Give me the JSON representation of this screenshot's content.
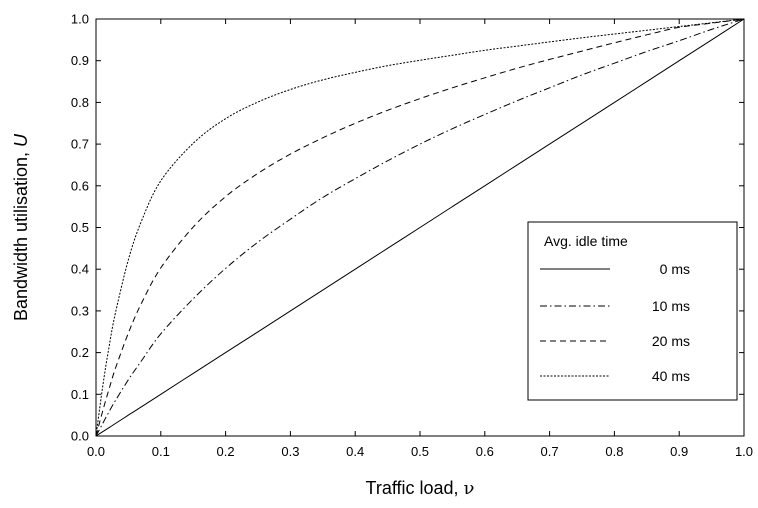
{
  "chart_data": {
    "type": "line",
    "xlabel": "Traffic load, ",
    "xlabel_symbol": "ν",
    "ylabel": "Bandwidth utilisation, ",
    "ylabel_symbol": "U",
    "xlim": [
      0.0,
      1.0
    ],
    "ylim": [
      0.0,
      1.0
    ],
    "xticks": [
      "0.0",
      "0.1",
      "0.2",
      "0.3",
      "0.4",
      "0.5",
      "0.6",
      "0.7",
      "0.8",
      "0.9",
      "1.0"
    ],
    "yticks": [
      "0.0",
      "0.1",
      "0.2",
      "0.3",
      "0.4",
      "0.5",
      "0.6",
      "0.7",
      "0.8",
      "0.9",
      "1.0"
    ],
    "grid": false,
    "legend": {
      "title": "Avg. idle time",
      "placement": "lower-right",
      "entries": [
        "0 ms",
        "10 ms",
        "20 ms",
        "40 ms"
      ]
    },
    "x": [
      0.0,
      0.01,
      0.02,
      0.03,
      0.05,
      0.07,
      0.1,
      0.15,
      0.2,
      0.25,
      0.3,
      0.35,
      0.4,
      0.45,
      0.5,
      0.55,
      0.6,
      0.65,
      0.7,
      0.75,
      0.8,
      0.85,
      0.9,
      0.95,
      1.0
    ],
    "series": [
      {
        "name": "0 ms",
        "dash": "solid",
        "values": [
          0.0,
          0.01,
          0.02,
          0.03,
          0.05,
          0.07,
          0.1,
          0.15,
          0.2,
          0.25,
          0.3,
          0.35,
          0.4,
          0.45,
          0.5,
          0.55,
          0.6,
          0.65,
          0.7,
          0.75,
          0.8,
          0.85,
          0.9,
          0.95,
          1.0
        ]
      },
      {
        "name": "10 ms",
        "dash": "dashdot",
        "values": [
          0.0,
          0.029,
          0.058,
          0.085,
          0.135,
          0.18,
          0.245,
          0.329,
          0.402,
          0.465,
          0.52,
          0.572,
          0.617,
          0.66,
          0.7,
          0.737,
          0.771,
          0.804,
          0.835,
          0.866,
          0.894,
          0.922,
          0.948,
          0.975,
          1.0
        ]
      },
      {
        "name": "20 ms",
        "dash": "dashed",
        "values": [
          0.0,
          0.058,
          0.112,
          0.162,
          0.247,
          0.318,
          0.403,
          0.501,
          0.574,
          0.63,
          0.676,
          0.715,
          0.75,
          0.781,
          0.809,
          0.835,
          0.859,
          0.882,
          0.903,
          0.923,
          0.943,
          0.962,
          0.98,
          0.99,
          1.0
        ]
      },
      {
        "name": "40 ms",
        "dash": "dotted",
        "values": [
          0.0,
          0.115,
          0.213,
          0.295,
          0.423,
          0.515,
          0.612,
          0.702,
          0.761,
          0.801,
          0.831,
          0.854,
          0.872,
          0.888,
          0.901,
          0.913,
          0.925,
          0.935,
          0.945,
          0.955,
          0.964,
          0.973,
          0.982,
          0.991,
          1.0
        ]
      }
    ]
  }
}
